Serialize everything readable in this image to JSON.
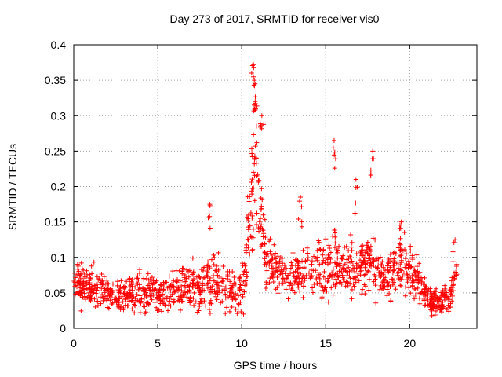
{
  "chart_data": {
    "type": "scatter",
    "title": "Day 273 of 2017, SRMTID for receiver vis0",
    "xlabel": "GPS time / hours",
    "ylabel": "SRMTID / TECUs",
    "xlim": [
      0,
      24
    ],
    "ylim": [
      0,
      0.4
    ],
    "x_ticks": [
      0,
      5,
      10,
      15,
      20
    ],
    "y_ticks": [
      0,
      0.05,
      0.1,
      0.15,
      0.2,
      0.25,
      0.3,
      0.35,
      0.4
    ],
    "x_tick_labels": [
      "0",
      "5",
      "10",
      "15",
      "20"
    ],
    "y_tick_labels": [
      "0",
      "0.05",
      "0.1",
      "0.15",
      "0.2",
      "0.25",
      "0.3",
      "0.35",
      "0.4"
    ],
    "grid": true,
    "marker": "plus",
    "marker_color": "#ff0000",
    "series": [
      {
        "name": "vis0",
        "approximate_profile": {
          "x": [
            0,
            0.5,
            1,
            1.5,
            2,
            2.5,
            3,
            3.5,
            4,
            4.5,
            5,
            5.5,
            6,
            6.5,
            7,
            7.5,
            8,
            8.5,
            9,
            9.5,
            10,
            10.3,
            10.6,
            10.8,
            11,
            11.3,
            11.6,
            12,
            12.5,
            13,
            13.5,
            14,
            14.5,
            15,
            15.5,
            16,
            16.5,
            17,
            17.5,
            18,
            18.5,
            19,
            19.5,
            20,
            20.5,
            21,
            21.5,
            22,
            22.5,
            22.8
          ],
          "center": [
            0.07,
            0.06,
            0.055,
            0.06,
            0.05,
            0.045,
            0.045,
            0.05,
            0.05,
            0.05,
            0.045,
            0.05,
            0.055,
            0.06,
            0.06,
            0.055,
            0.07,
            0.065,
            0.06,
            0.055,
            0.05,
            0.1,
            0.2,
            0.25,
            0.18,
            0.12,
            0.09,
            0.085,
            0.08,
            0.07,
            0.08,
            0.085,
            0.08,
            0.08,
            0.1,
            0.085,
            0.09,
            0.08,
            0.1,
            0.085,
            0.07,
            0.08,
            0.09,
            0.085,
            0.065,
            0.045,
            0.035,
            0.04,
            0.05,
            0.075
          ],
          "spread": [
            0.025,
            0.025,
            0.025,
            0.025,
            0.02,
            0.02,
            0.02,
            0.02,
            0.025,
            0.02,
            0.02,
            0.02,
            0.02,
            0.025,
            0.025,
            0.03,
            0.03,
            0.03,
            0.03,
            0.025,
            0.025,
            0.05,
            0.08,
            0.08,
            0.06,
            0.04,
            0.03,
            0.025,
            0.025,
            0.025,
            0.03,
            0.03,
            0.03,
            0.035,
            0.04,
            0.03,
            0.035,
            0.03,
            0.04,
            0.035,
            0.03,
            0.03,
            0.03,
            0.03,
            0.025,
            0.02,
            0.015,
            0.015,
            0.02,
            0.025
          ]
        },
        "spikes": [
          {
            "x": 10.7,
            "y": 0.372
          },
          {
            "x": 10.75,
            "y": 0.35
          },
          {
            "x": 10.8,
            "y": 0.32
          },
          {
            "x": 11.2,
            "y": 0.3
          },
          {
            "x": 15.5,
            "y": 0.265
          },
          {
            "x": 17.8,
            "y": 0.25
          },
          {
            "x": 13.5,
            "y": 0.185
          },
          {
            "x": 8.1,
            "y": 0.175
          },
          {
            "x": 16.8,
            "y": 0.21
          },
          {
            "x": 19.5,
            "y": 0.15
          },
          {
            "x": 22.7,
            "y": 0.125
          }
        ]
      }
    ]
  }
}
